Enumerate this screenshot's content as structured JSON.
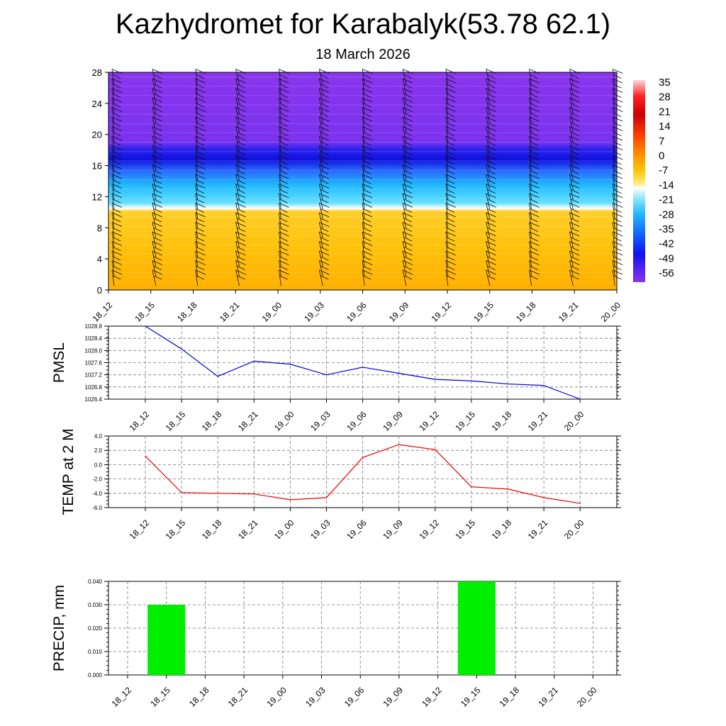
{
  "title": "Kazhydromet for Karabalyk(53.78 62.1)",
  "subtitle": "18 March 2026",
  "chart_data": [
    {
      "type": "heatmap",
      "name": "cross-section",
      "y_ticks": [
        0,
        4,
        8,
        12,
        16,
        20,
        24,
        28
      ],
      "ylim": [
        0,
        28
      ],
      "x_ticks": [
        "18_12",
        "18_15",
        "18_18",
        "18_21",
        "19_00",
        "19_03",
        "19_06",
        "19_09",
        "19_12",
        "19_15",
        "19_18",
        "19_21",
        "20_00"
      ],
      "colorbar_labels": [
        "35",
        "28",
        "21",
        "14",
        "7",
        "0",
        "-7",
        "-14",
        "-21",
        "-28",
        "-35",
        "-42",
        "-49",
        "-56"
      ],
      "layers": [
        {
          "from": 0,
          "to": 10.5,
          "value": 0
        },
        {
          "from": 10.5,
          "to": 16,
          "value": -21
        },
        {
          "from": 16,
          "to": 18.5,
          "value": -56
        },
        {
          "from": 18.5,
          "to": 28,
          "value": -60
        }
      ],
      "colors": {
        "warm": "#ffc40a",
        "cool": "#33ccff",
        "cold": "#2222ee",
        "upper": "#8833ee"
      }
    },
    {
      "type": "line",
      "name": "pmsl",
      "ylabel": "PMSL",
      "categories": [
        "18_12",
        "18_15",
        "18_18",
        "18_21",
        "19_00",
        "19_03",
        "19_06",
        "19_09",
        "19_12",
        "19_15",
        "19_18",
        "19_21",
        "20_00"
      ],
      "values": [
        1028.8,
        1028.05,
        1027.15,
        1027.65,
        1027.55,
        1027.2,
        1027.45,
        1027.25,
        1027.05,
        1027.0,
        1026.9,
        1026.85,
        1026.4
      ],
      "ylim": [
        1026.4,
        1028.8
      ],
      "y_ticks": [
        1026.4,
        1026.8,
        1027.2,
        1027.6,
        1028.0,
        1028.4,
        1028.8
      ],
      "y_tick_labels": [
        "1026.4",
        "1026.8",
        "1027.2",
        "1027.6",
        "1028.0",
        "1028.4",
        "1028.8"
      ],
      "color": "#0000dd"
    },
    {
      "type": "line",
      "name": "temp",
      "ylabel": "TEMP at 2 M",
      "categories": [
        "18_12",
        "18_15",
        "18_18",
        "18_21",
        "19_00",
        "19_03",
        "19_06",
        "19_09",
        "19_12",
        "19_15",
        "19_18",
        "19_21",
        "20_00"
      ],
      "values": [
        1.2,
        -3.9,
        -4.0,
        -4.1,
        -4.9,
        -4.6,
        1.0,
        2.8,
        2.1,
        -3.1,
        -3.4,
        -4.6,
        -5.4
      ],
      "ylim": [
        -6.0,
        4.0
      ],
      "y_ticks": [
        -6,
        -4,
        -2,
        0,
        2,
        4
      ],
      "y_tick_labels": [
        "-6.0",
        "-4.0",
        "-2.0",
        "0.0",
        "2.0",
        "4.0"
      ],
      "color": "#ee0000"
    },
    {
      "type": "bar",
      "name": "precip",
      "ylabel": "PRECIP, mm",
      "categories": [
        "18_12",
        "18_15",
        "18_18",
        "18_21",
        "19_00",
        "19_03",
        "19_06",
        "19_09",
        "19_12",
        "19_15",
        "19_18",
        "19_21",
        "20_00"
      ],
      "values": [
        0,
        0.03,
        0,
        0,
        0,
        0,
        0,
        0,
        0,
        0.04,
        0,
        0,
        0
      ],
      "ylim": [
        0,
        0.04
      ],
      "y_ticks": [
        0,
        0.01,
        0.02,
        0.03,
        0.04
      ],
      "y_tick_labels": [
        "0.000",
        "0.010",
        "0.020",
        "0.030",
        "0.040"
      ],
      "color": "#00ee00"
    }
  ]
}
